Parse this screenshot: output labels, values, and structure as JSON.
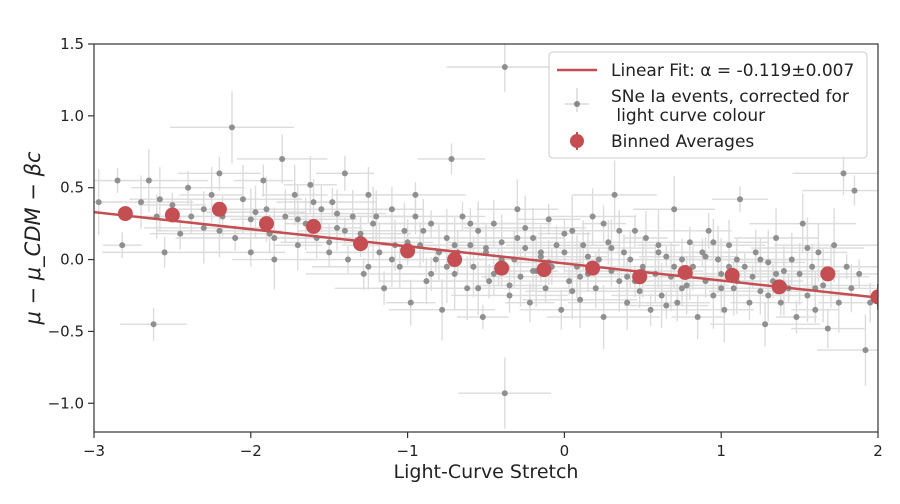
{
  "chart_data": {
    "type": "scatter",
    "xlabel": "Light-Curve Stretch",
    "ylabel": "μ − μ_CDM − βc",
    "xlim": [
      -3,
      2
    ],
    "ylim": [
      -1.2,
      1.5
    ],
    "xticks": [
      -3,
      -2,
      -1,
      0,
      1,
      2
    ],
    "xtick_labels": [
      "−3",
      "−2",
      "−1",
      "0",
      "1",
      "2"
    ],
    "yticks": [
      -1.0,
      -0.5,
      0.0,
      0.5,
      1.0,
      1.5
    ],
    "ytick_labels": [
      "−1.0",
      "−0.5",
      "0.0",
      "0.5",
      "1.0",
      "1.5"
    ],
    "grid": false,
    "legend_position": "top-right",
    "legend": [
      {
        "label": "Linear Fit: α = -0.119±0.007"
      },
      {
        "label_line1": "SNe Ia events, corrected for",
        "label_line2": " light curve colour"
      },
      {
        "label": "Binned Averages"
      }
    ],
    "fit_line": {
      "name": "Linear Fit",
      "x": [
        -3,
        2
      ],
      "y": [
        0.33,
        -0.265
      ]
    },
    "binned_averages": {
      "name": "Binned Averages",
      "x": [
        -2.8,
        -2.5,
        -2.2,
        -1.9,
        -1.6,
        -1.3,
        -1.0,
        -0.7,
        -0.4,
        -0.13,
        0.18,
        0.48,
        0.77,
        1.07,
        1.37,
        1.68,
        2.0
      ],
      "y": [
        0.32,
        0.31,
        0.35,
        0.25,
        0.23,
        0.11,
        0.06,
        0.0,
        -0.06,
        -0.07,
        -0.06,
        -0.12,
        -0.09,
        -0.11,
        -0.19,
        -0.1,
        -0.26
      ],
      "yerr": [
        0.05,
        0.04,
        0.04,
        0.04,
        0.04,
        0.03,
        0.03,
        0.03,
        0.03,
        0.03,
        0.03,
        0.03,
        0.03,
        0.03,
        0.04,
        0.05,
        0.09
      ]
    },
    "scatter_points": {
      "name": "SNe Ia events",
      "points": [
        [
          -2.97,
          0.4
        ],
        [
          -2.85,
          0.55
        ],
        [
          -2.82,
          0.1
        ],
        [
          -2.7,
          0.4
        ],
        [
          -2.65,
          0.55
        ],
        [
          -2.62,
          -0.45
        ],
        [
          -2.58,
          0.42
        ],
        [
          -2.55,
          0.05
        ],
        [
          -2.5,
          0.38
        ],
        [
          -2.45,
          0.18
        ],
        [
          -2.4,
          0.5
        ],
        [
          -2.38,
          0.3
        ],
        [
          -2.3,
          0.22
        ],
        [
          -2.25,
          0.45
        ],
        [
          -2.2,
          0.6
        ],
        [
          -2.18,
          0.3
        ],
        [
          -2.12,
          0.92
        ],
        [
          -2.1,
          0.15
        ],
        [
          -2.05,
          0.42
        ],
        [
          -2.0,
          0.05
        ],
        [
          -1.97,
          0.33
        ],
        [
          -1.92,
          0.55
        ],
        [
          -1.88,
          0.18
        ],
        [
          -1.85,
          0.0
        ],
        [
          -1.8,
          0.7
        ],
        [
          -1.78,
          0.3
        ],
        [
          -1.72,
          0.45
        ],
        [
          -1.7,
          0.1
        ],
        [
          -1.65,
          0.25
        ],
        [
          -1.62,
          0.52
        ],
        [
          -1.58,
          0.15
        ],
        [
          -1.55,
          0.35
        ],
        [
          -1.5,
          0.05
        ],
        [
          -1.48,
          0.4
        ],
        [
          -1.45,
          0.22
        ],
        [
          -1.4,
          0.6
        ],
        [
          -1.38,
          0.0
        ],
        [
          -1.35,
          0.3
        ],
        [
          -1.3,
          0.15
        ],
        [
          -1.28,
          -0.1
        ],
        [
          -1.25,
          0.45
        ],
        [
          -1.22,
          0.25
        ],
        [
          -1.18,
          0.05
        ],
        [
          -1.15,
          -0.2
        ],
        [
          -1.1,
          0.35
        ],
        [
          -1.08,
          0.1
        ],
        [
          -1.05,
          -0.05
        ],
        [
          -1.02,
          0.2
        ],
        [
          -0.98,
          -0.3
        ],
        [
          -0.95,
          0.45
        ],
        [
          -0.92,
          0.1
        ],
        [
          -0.88,
          -0.15
        ],
        [
          -0.85,
          0.25
        ],
        [
          -0.82,
          0.0
        ],
        [
          -0.78,
          -0.35
        ],
        [
          -0.75,
          0.15
        ],
        [
          -0.72,
          0.7
        ],
        [
          -0.7,
          -0.1
        ],
        [
          -0.68,
          0.05
        ],
        [
          -0.65,
          0.3
        ],
        [
          -0.62,
          -0.2
        ],
        [
          -0.6,
          0.1
        ],
        [
          -0.58,
          -0.05
        ],
        [
          -0.55,
          0.2
        ],
        [
          -0.52,
          -0.4
        ],
        [
          -0.5,
          0.05
        ],
        [
          -0.48,
          -0.15
        ],
        [
          -0.45,
          0.25
        ],
        [
          -0.42,
          -0.05
        ],
        [
          -0.4,
          0.12
        ],
        [
          -0.38,
          1.34
        ],
        [
          -0.38,
          -0.93
        ],
        [
          -0.35,
          -0.25
        ],
        [
          -0.32,
          0.0
        ],
        [
          -0.3,
          0.35
        ],
        [
          -0.28,
          -0.12
        ],
        [
          -0.25,
          0.08
        ],
        [
          -0.22,
          -0.3
        ],
        [
          -0.2,
          0.15
        ],
        [
          -0.18,
          -0.08
        ],
        [
          -0.15,
          0.02
        ],
        [
          -0.12,
          -0.2
        ],
        [
          -0.1,
          0.28
        ],
        [
          -0.08,
          -0.05
        ],
        [
          -0.05,
          0.1
        ],
        [
          -0.02,
          -0.35
        ],
        [
          0.0,
          0.05
        ],
        [
          0.03,
          -0.15
        ],
        [
          0.05,
          0.2
        ],
        [
          0.08,
          -0.05
        ],
        [
          0.1,
          -0.28
        ],
        [
          0.12,
          0.1
        ],
        [
          0.15,
          -0.1
        ],
        [
          0.18,
          0.3
        ],
        [
          0.2,
          -0.2
        ],
        [
          0.22,
          0.0
        ],
        [
          0.25,
          -0.4
        ],
        [
          0.28,
          0.12
        ],
        [
          0.3,
          -0.08
        ],
        [
          0.32,
          0.45
        ],
        [
          0.35,
          -0.15
        ],
        [
          0.38,
          0.05
        ],
        [
          0.4,
          -0.3
        ],
        [
          0.42,
          0.0
        ],
        [
          0.45,
          0.2
        ],
        [
          0.48,
          -0.22
        ],
        [
          0.5,
          -0.05
        ],
        [
          0.52,
          0.15
        ],
        [
          0.55,
          -0.35
        ],
        [
          0.58,
          -0.1
        ],
        [
          0.6,
          0.1
        ],
        [
          0.62,
          -0.25
        ],
        [
          0.65,
          0.02
        ],
        [
          0.68,
          -0.12
        ],
        [
          0.7,
          0.35
        ],
        [
          0.72,
          -0.3
        ],
        [
          0.75,
          0.0
        ],
        [
          0.78,
          -0.18
        ],
        [
          0.8,
          0.12
        ],
        [
          0.82,
          -0.05
        ],
        [
          0.85,
          -0.4
        ],
        [
          0.88,
          0.05
        ],
        [
          0.9,
          -0.15
        ],
        [
          0.92,
          0.2
        ],
        [
          0.95,
          -0.25
        ],
        [
          0.98,
          0.0
        ],
        [
          1.0,
          -0.1
        ],
        [
          1.02,
          -0.35
        ],
        [
          1.05,
          0.1
        ],
        [
          1.08,
          -0.2
        ],
        [
          1.1,
          0.0
        ],
        [
          1.12,
          0.42
        ],
        [
          1.15,
          -0.05
        ],
        [
          1.18,
          -0.3
        ],
        [
          1.2,
          -0.12
        ],
        [
          1.22,
          0.05
        ],
        [
          1.25,
          -0.22
        ],
        [
          1.28,
          -0.45
        ],
        [
          1.3,
          -0.02
        ],
        [
          1.33,
          -0.15
        ],
        [
          1.35,
          0.15
        ],
        [
          1.38,
          -0.3
        ],
        [
          1.4,
          -0.08
        ],
        [
          1.43,
          -0.2
        ],
        [
          1.45,
          0.0
        ],
        [
          1.48,
          -0.4
        ],
        [
          1.5,
          -0.1
        ],
        [
          1.52,
          0.25
        ],
        [
          1.55,
          -0.25
        ],
        [
          1.58,
          -0.05
        ],
        [
          1.6,
          -0.35
        ],
        [
          1.62,
          0.05
        ],
        [
          1.65,
          -0.18
        ],
        [
          1.68,
          -0.48
        ],
        [
          1.7,
          -0.12
        ],
        [
          1.72,
          0.1
        ],
        [
          1.75,
          -0.3
        ],
        [
          1.78,
          0.6
        ],
        [
          1.8,
          -0.05
        ],
        [
          1.83,
          -0.2
        ],
        [
          1.85,
          0.48
        ],
        [
          1.88,
          -0.1
        ],
        [
          1.92,
          -0.63
        ],
        [
          1.95,
          -0.3
        ],
        [
          -1.9,
          0.35
        ],
        [
          -1.6,
          0.4
        ],
        [
          -1.2,
          0.3
        ],
        [
          -0.9,
          0.2
        ],
        [
          -0.6,
          0.25
        ],
        [
          -0.3,
          0.15
        ],
        [
          0.0,
          0.18
        ],
        [
          0.3,
          0.08
        ],
        [
          0.6,
          0.05
        ],
        [
          0.9,
          0.02
        ],
        [
          -1.4,
          0.2
        ],
        [
          -1.0,
          0.12
        ],
        [
          -0.7,
          0.1
        ],
        [
          -0.4,
          0.0
        ],
        [
          -0.1,
          -0.02
        ],
        [
          0.2,
          -0.05
        ],
        [
          0.5,
          -0.08
        ],
        [
          0.8,
          -0.1
        ],
        [
          1.1,
          -0.15
        ],
        [
          1.4,
          -0.18
        ],
        [
          -1.7,
          0.28
        ],
        [
          -1.3,
          0.18
        ],
        [
          -0.8,
          0.05
        ],
        [
          -0.5,
          0.08
        ],
        [
          -0.2,
          -0.08
        ],
        [
          0.1,
          -0.12
        ],
        [
          0.4,
          -0.12
        ],
        [
          0.7,
          -0.05
        ],
        [
          1.0,
          -0.2
        ],
        [
          1.3,
          -0.25
        ],
        [
          -2.3,
          0.35
        ],
        [
          -2.0,
          0.28
        ],
        [
          -1.5,
          0.12
        ],
        [
          -1.1,
          0.0
        ],
        [
          -0.75,
          -0.05
        ],
        [
          -0.45,
          -0.1
        ],
        [
          -0.15,
          0.05
        ],
        [
          0.15,
          0.02
        ],
        [
          0.45,
          -0.15
        ],
        [
          0.75,
          -0.2
        ],
        [
          1.05,
          -0.05
        ],
        [
          1.35,
          -0.1
        ],
        [
          1.6,
          -0.2
        ],
        [
          -2.6,
          0.3
        ],
        [
          -2.2,
          0.2
        ],
        [
          -1.85,
          0.15
        ],
        [
          -1.45,
          0.32
        ],
        [
          -0.95,
          0.3
        ],
        [
          -0.55,
          -0.2
        ],
        [
          -0.25,
          0.22
        ],
        [
          0.05,
          -0.22
        ],
        [
          0.35,
          0.2
        ],
        [
          0.65,
          -0.32
        ],
        [
          0.95,
          0.12
        ],
        [
          1.25,
          0.0
        ],
        [
          1.55,
          0.08
        ],
        [
          -1.25,
          -0.05
        ],
        [
          -0.85,
          -0.1
        ],
        [
          -0.35,
          -0.18
        ],
        [
          0.25,
          0.25
        ]
      ]
    }
  }
}
